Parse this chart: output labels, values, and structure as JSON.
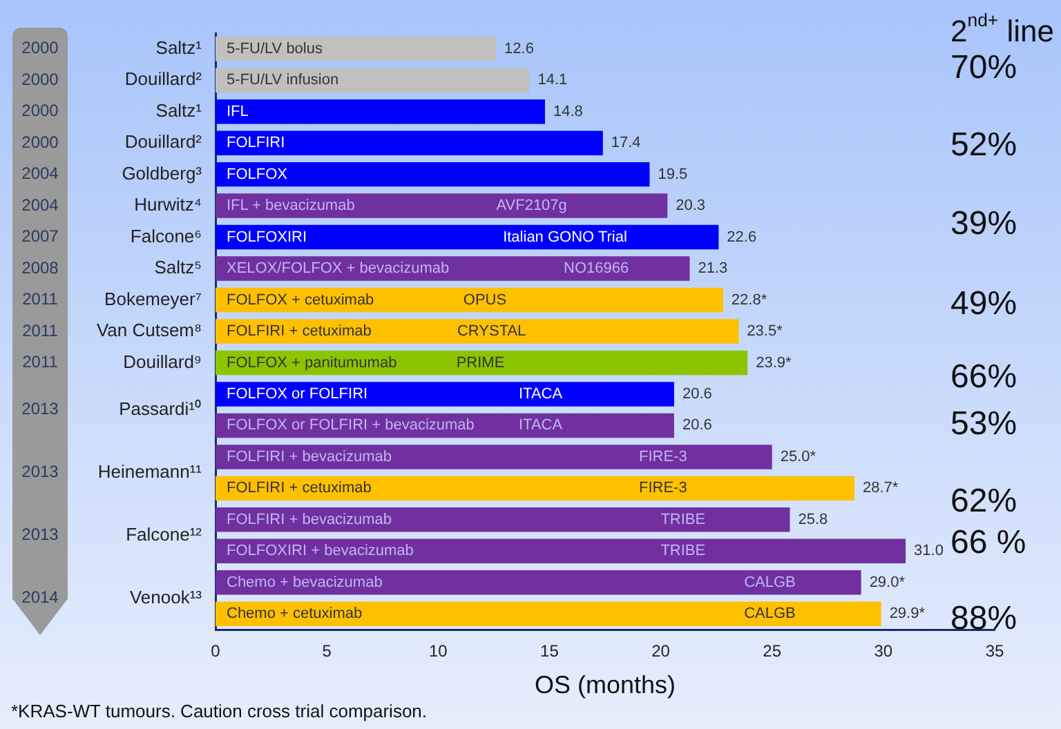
{
  "chart_data": {
    "type": "bar",
    "orientation": "horizontal",
    "xlabel": "OS (months)",
    "categories": [
      "5-FU/LV bolus",
      "5-FU/LV infusion",
      "IFL",
      "FOLFIRI",
      "FOLFOX",
      "IFL + bevacizumab",
      "FOLFOXIRI",
      "XELOX/FOLFOX + bevacizumab",
      "FOLFOX + cetuximab",
      "FOLFIRI + cetuximab",
      "FOLFOX + panitumumab",
      "FOLFOX or FOLFIRI",
      "FOLFOX or FOLFIRI + bevacizumab",
      "FOLFIRI + bevacizumab",
      "FOLFIRI + cetuximab",
      "FOLFIRI + bevacizumab",
      "FOLFOXIRI + bevacizumab",
      "Chemo + bevacizumab",
      "Chemo + cetuximab"
    ],
    "values": [
      12.6,
      14.1,
      14.8,
      17.4,
      19.5,
      20.3,
      22.6,
      21.3,
      22.8,
      23.5,
      23.9,
      20.6,
      20.6,
      25.0,
      28.7,
      25.8,
      31.0,
      29.0,
      29.9
    ],
    "value_labels": [
      "12.6",
      "14.1",
      "14.8",
      "17.4",
      "19.5",
      "20.3",
      "22.6",
      "21.3",
      "22.8*",
      "23.5*",
      "23.9*",
      "20.6",
      "20.6",
      "25.0*",
      "28.7*",
      "25.8",
      "31.0",
      "29.0*",
      "29.9*"
    ],
    "colors": [
      "#c0c0c0",
      "#c0c0c0",
      "#0000ff",
      "#0000ff",
      "#0000ff",
      "#7030a0",
      "#0000ff",
      "#7030a0",
      "#ffc000",
      "#ffc000",
      "#8cc400",
      "#0000ff",
      "#7030a0",
      "#7030a0",
      "#ffc000",
      "#7030a0",
      "#7030a0",
      "#7030a0",
      "#ffc000"
    ],
    "xlim": [
      0,
      35
    ],
    "xticks": [
      0,
      5,
      10,
      15,
      20,
      25,
      30,
      35
    ],
    "grid": false,
    "legend": false,
    "annotations": [
      "2000",
      "Saltz¹",
      "2000",
      "Douillard²",
      "2000",
      "Saltz¹",
      "2000",
      "Douillard²",
      "2004",
      "Goldberg³",
      "2004",
      "Hurwitz⁴",
      "2007",
      "Falcone⁶",
      "2008",
      "Saltz⁵",
      "2011",
      "Bokemeyer⁷",
      "2011",
      "Van Cutsem⁸",
      "2011",
      "Douillard⁹",
      "2013",
      "Passardi¹⁰",
      "2013",
      "Heinemann¹¹",
      "2013",
      "Falcone¹²",
      "2014",
      "Venook¹³",
      "AVF2107g",
      "Italian GONO Trial",
      "NO16966",
      "OPUS",
      "CRYSTAL",
      "PRIME",
      "ITACA",
      "ITACA",
      "FIRE-3",
      "FIRE-3",
      "TRIBE",
      "TRIBE",
      "CALGB",
      "CALGB",
      "2$^{nd+}$ line",
      "70%",
      "52%",
      "39%",
      "49%",
      "66%",
      "53%",
      "62%",
      "66 %",
      "88%",
      "*KRAS-WT tumours. Caution cross trial comparison."
    ]
  }
}
